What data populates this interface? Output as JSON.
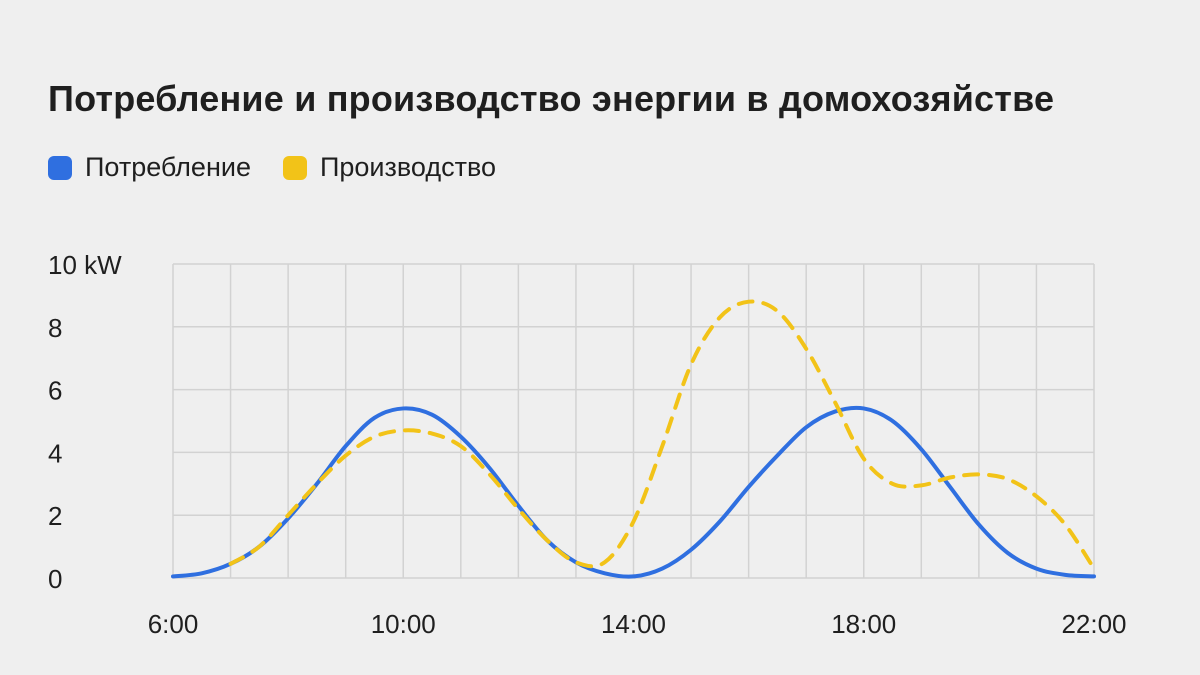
{
  "chart_data": {
    "type": "line",
    "title": "Потребление и производство энергии в домохозяйстве",
    "x_ticks": [
      "6:00",
      "10:00",
      "14:00",
      "18:00",
      "22:00"
    ],
    "y_ticks": [
      "0",
      "2",
      "4",
      "6",
      "8",
      "10 kW"
    ],
    "xlim": [
      6,
      22
    ],
    "ylim": [
      0,
      10
    ],
    "x_minor_step": 1,
    "grid": true,
    "legend_position": "top-left",
    "series": [
      {
        "name": "Потребление",
        "color": "#2f6fe0",
        "style": "solid",
        "x": [
          6,
          6.5,
          7,
          7.5,
          8,
          8.5,
          9,
          9.5,
          10,
          10.5,
          11,
          11.5,
          12,
          12.5,
          13,
          13.5,
          14,
          14.5,
          15,
          15.5,
          16,
          16.5,
          17,
          17.5,
          18,
          18.5,
          19,
          19.5,
          20,
          20.5,
          21,
          21.5,
          22
        ],
        "values": [
          0.05,
          0.15,
          0.45,
          1.0,
          1.9,
          3.0,
          4.2,
          5.1,
          5.4,
          5.2,
          4.5,
          3.5,
          2.3,
          1.2,
          0.5,
          0.15,
          0.05,
          0.3,
          0.9,
          1.8,
          2.9,
          3.9,
          4.8,
          5.3,
          5.4,
          5.0,
          4.1,
          2.9,
          1.7,
          0.8,
          0.3,
          0.1,
          0.05
        ]
      },
      {
        "name": "Производство",
        "color": "#f2c318",
        "style": "dashed",
        "x": [
          7,
          7.5,
          8,
          8.5,
          9,
          9.5,
          10,
          10.5,
          11,
          11.5,
          12,
          12.5,
          13,
          13.5,
          14,
          14.5,
          15,
          15.5,
          16,
          16.5,
          17,
          17.5,
          18,
          18.5,
          19,
          19.5,
          20,
          20.5,
          21,
          21.5,
          22
        ],
        "values": [
          0.45,
          1.0,
          2.0,
          3.0,
          3.9,
          4.5,
          4.7,
          4.6,
          4.2,
          3.3,
          2.2,
          1.2,
          0.5,
          0.5,
          1.8,
          4.2,
          6.8,
          8.3,
          8.8,
          8.5,
          7.3,
          5.6,
          3.8,
          3.0,
          2.95,
          3.2,
          3.3,
          3.15,
          2.6,
          1.7,
          0.3
        ]
      }
    ]
  }
}
